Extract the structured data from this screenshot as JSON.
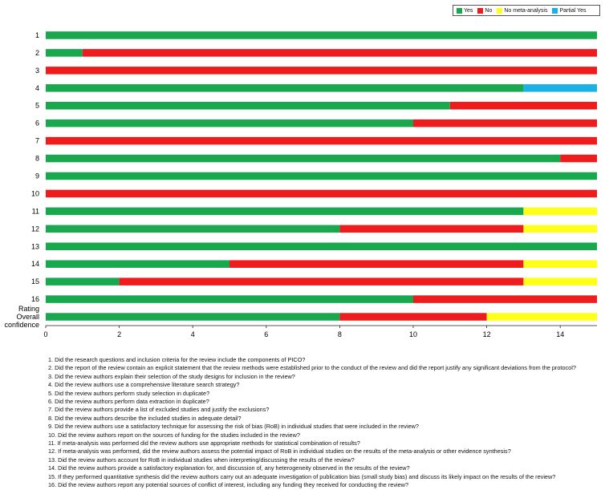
{
  "colors": {
    "yes": "#1aa84f",
    "no": "#ee1c1c",
    "na": "#ffff1a",
    "partial": "#1ab2e6"
  },
  "legend": [
    {
      "key": "yes",
      "label": "Yes"
    },
    {
      "key": "no",
      "label": "No"
    },
    {
      "key": "na",
      "label": "No meta-analysis"
    },
    {
      "key": "partial",
      "label": "Partial Yes"
    }
  ],
  "chart_data": {
    "type": "bar",
    "orientation": "horizontal",
    "stacked": true,
    "xlim": [
      0,
      15
    ],
    "xticks": [
      "0",
      "2",
      "4",
      "6",
      "8",
      "10",
      "12",
      "14"
    ],
    "xtick_values": [
      0,
      2,
      4,
      6,
      8,
      10,
      12,
      14
    ],
    "grid": false,
    "legend_position": "top-right",
    "categories": [
      "1",
      "2",
      "3",
      "4",
      "5",
      "6",
      "7",
      "8",
      "9",
      "10",
      "11",
      "12",
      "13",
      "14",
      "15",
      "16",
      "Rating Overall confidence"
    ],
    "category_lines": [
      [
        "1"
      ],
      [
        "2"
      ],
      [
        "3"
      ],
      [
        "4"
      ],
      [
        "5"
      ],
      [
        "6"
      ],
      [
        "7"
      ],
      [
        "8"
      ],
      [
        "9"
      ],
      [
        "10"
      ],
      [
        "11"
      ],
      [
        "12"
      ],
      [
        "13"
      ],
      [
        "14"
      ],
      [
        "15"
      ],
      [
        "16"
      ],
      [
        "Rating",
        "Overall",
        "confidence"
      ]
    ],
    "series": [
      {
        "name": "Yes",
        "key": "yes",
        "values": [
          15,
          1,
          0,
          13,
          11,
          10,
          0,
          14,
          15,
          0,
          13,
          8,
          15,
          5,
          2,
          10,
          8
        ]
      },
      {
        "name": "No",
        "key": "no",
        "values": [
          0,
          14,
          15,
          0,
          4,
          5,
          15,
          1,
          0,
          15,
          0,
          5,
          0,
          8,
          11,
          5,
          4
        ]
      },
      {
        "name": "No meta-analysis",
        "key": "na",
        "values": [
          0,
          0,
          0,
          0,
          0,
          0,
          0,
          0,
          0,
          0,
          2,
          2,
          0,
          2,
          2,
          0,
          3
        ]
      },
      {
        "name": "Partial Yes",
        "key": "partial",
        "values": [
          0,
          0,
          0,
          2,
          0,
          0,
          0,
          0,
          0,
          0,
          0,
          0,
          0,
          0,
          0,
          0,
          0
        ]
      }
    ]
  },
  "questions": [
    "1. Did the research questions and inclusion criteria for the review include the components of PICO?",
    "2. Did the report of the review contain an explicit statement that the review methods were established prior to the conduct of the review and did the report justify any significant deviations from the protocol?",
    "3. Did the review authors explain their selection of the study designs for inclusion in the review?",
    "4. Did the review authors use a comprehensive literature search strategy?",
    "5. Did the review authors perform study selection in duplicate?",
    "6. Did the review authors perform data extraction in duplicate?",
    "7. Did the review authors provide a list of excluded studies and justify the exclusions?",
    "8. Did the review authors describe the included studies in adequate detail?",
    "9. Did the review authors use a satisfactory technique for assessing the risk of bias (RoB) in individual studies that were included in the review?",
    "10. Did the review authors report on the sources of funding for the studies included in the review?",
    "11. If meta-analysis was performed did the review authors use appropriate methods for statistical combination of results?",
    "12. If meta-analysis was performed, did the review authors assess the potential impact of RoB in individual studies on the results of the meta-analysis or other evidence synthesis?",
    "13. Did the review authors account for RoB in individual studies when interpreting/discussing the results of the review?",
    "14. Did the review authors provide a satisfactory explanation for, and discussion of, any heterogeneity observed in the results of the review?",
    "15. If they performed quantitative synthesis did the review authors carry out an adequate investigation of publication bias (small study bias) and discuss its likely impact on the results of the review?",
    "16. Did the review authors report any potential sources of conflict of interest, including any funding they received for conducting the review?"
  ]
}
